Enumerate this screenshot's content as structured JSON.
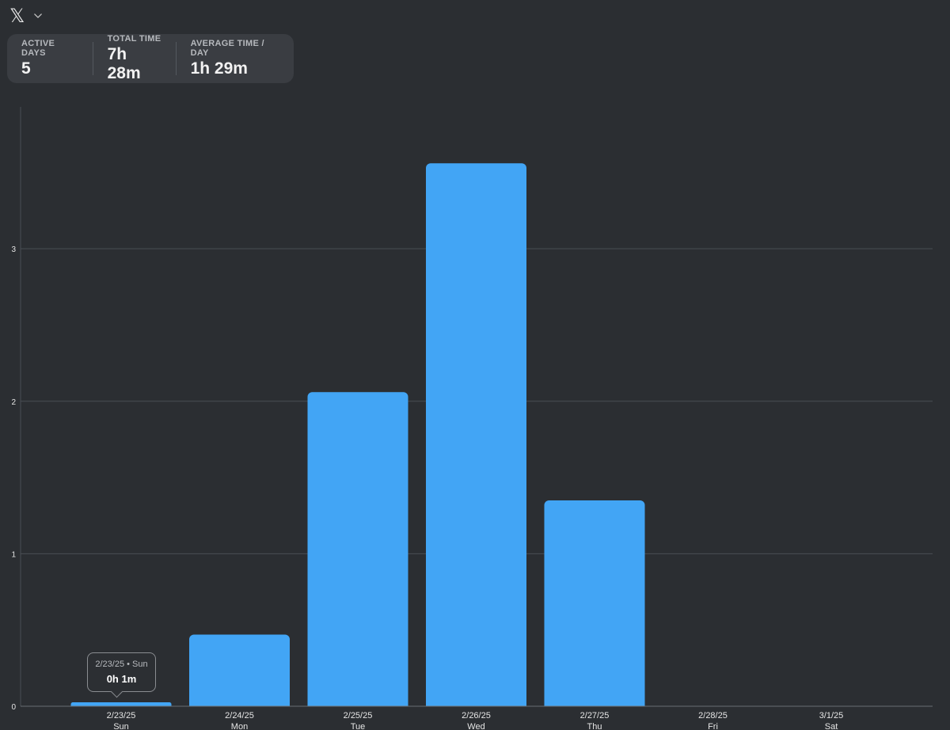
{
  "app": {
    "logo_glyph": "𝕏",
    "logo_icon": "x-logo-icon",
    "dropdown_icon": "chevron-down-icon"
  },
  "stats": {
    "active_days_label": "ACTIVE DAYS",
    "active_days_value": "5",
    "total_time_label": "TOTAL TIME",
    "total_time_value": "7h 28m",
    "avg_time_label": "AVERAGE TIME / DAY",
    "avg_time_value": "1h 29m"
  },
  "tooltip": {
    "date": "2/23/25 • Sun",
    "value": "0h 1m"
  },
  "colors": {
    "bar": "#42a5f5",
    "background": "#2b2e32",
    "card": "#3a3d42",
    "grid": "#4a4e54"
  },
  "chart_data": {
    "type": "bar",
    "categories": [
      "2/23/25",
      "2/24/25",
      "2/25/25",
      "2/26/25",
      "2/27/25",
      "2/28/25",
      "3/1/25"
    ],
    "weekdays": [
      "Sun",
      "Mon",
      "Tue",
      "Wed",
      "Thu",
      "Fri",
      "Sat"
    ],
    "values": [
      0.02,
      0.47,
      2.06,
      3.56,
      1.35,
      0,
      0
    ],
    "ylim": [
      0,
      3.93
    ],
    "yticks": [
      0,
      1,
      2,
      3
    ],
    "grid": true,
    "xlabel": "",
    "ylabel": ""
  }
}
